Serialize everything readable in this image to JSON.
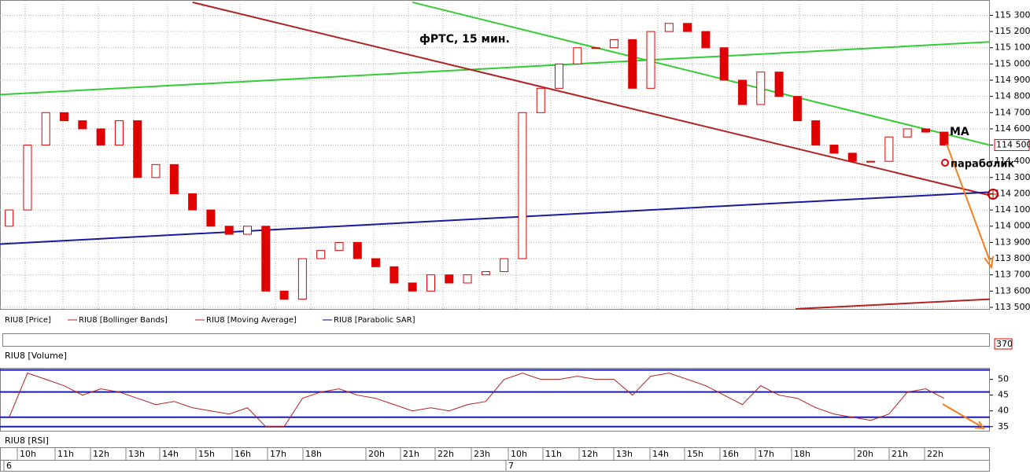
{
  "chart_data": [
    {
      "type": "candlestick",
      "title": "фРТС, 15 мин.",
      "xlim": [
        0,
        54
      ],
      "ylim": [
        113490,
        115370
      ],
      "yticks": [
        {
          "value": 113500,
          "label": "113 500"
        },
        {
          "value": 113600,
          "label": "113 600"
        },
        {
          "value": 113700,
          "label": "113 700"
        },
        {
          "value": 113800,
          "label": "113 800"
        },
        {
          "value": 113900,
          "label": "113 900"
        },
        {
          "value": 114000,
          "label": "114 000"
        },
        {
          "value": 114100,
          "label": "114 100"
        },
        {
          "value": 114200,
          "label": "114 200"
        },
        {
          "value": 114300,
          "label": "114 300"
        },
        {
          "value": 114400,
          "label": "114 400"
        },
        {
          "value": 114500,
          "label": "114 500"
        },
        {
          "value": 114600,
          "label": "114 600"
        },
        {
          "value": 114700,
          "label": "114 700"
        },
        {
          "value": 114800,
          "label": "114 800"
        },
        {
          "value": 114900,
          "label": "114 900"
        },
        {
          "value": 115000,
          "label": "115 000"
        },
        {
          "value": 115100,
          "label": "115 100"
        },
        {
          "value": 115200,
          "label": "115 200"
        },
        {
          "value": 115300,
          "label": "115 300"
        }
      ],
      "grid": true,
      "last_price": {
        "value": 114500,
        "label": "114 500"
      },
      "series": [
        {
          "name": "RIU8 [Price]",
          "color": "#e00000",
          "open": [
            114000,
            114100,
            114500,
            114700,
            114650,
            114600,
            114500,
            114650,
            114300,
            114380,
            114200,
            114100,
            114000,
            113950,
            114000,
            113600,
            113550,
            113800,
            113850,
            113900,
            113800,
            113750,
            113650,
            113600,
            113700,
            113650,
            113700,
            113720,
            113800,
            114700,
            114850,
            115000,
            115100,
            115100,
            115150,
            114850,
            115200,
            115250,
            115200,
            115100,
            114900,
            114750,
            114950,
            114800,
            114650,
            114500,
            114450,
            114400,
            114400,
            114550,
            114600,
            114580
          ],
          "close": [
            114100,
            114500,
            114700,
            114650,
            114600,
            114500,
            114650,
            114300,
            114380,
            114200,
            114100,
            114000,
            113950,
            114000,
            113600,
            113550,
            113800,
            113850,
            113900,
            113800,
            113750,
            113650,
            113600,
            113700,
            113650,
            113700,
            113720,
            113800,
            114700,
            114850,
            115000,
            115100,
            115100,
            115150,
            114850,
            115200,
            115250,
            115200,
            115100,
            114900,
            114750,
            114950,
            114800,
            114650,
            114500,
            114450,
            114400,
            114400,
            114550,
            114600,
            114580,
            114500
          ]
        }
      ],
      "legend": [
        {
          "name": "RIU8 [Price]",
          "color": "#000000"
        },
        {
          "name": "RIU8 [Bollinger Bands]",
          "color": "#b22222"
        },
        {
          "name": "RIU8 [Moving Average]",
          "color": "#b22222"
        },
        {
          "name": "RIU8 [Parabolic SAR]",
          "color": "#00008b"
        }
      ],
      "trend_lines": [
        {
          "color": "#33cc33",
          "x": [
            0,
            54
          ],
          "values": [
            114811,
            115136
          ]
        },
        {
          "color": "#33cc33",
          "x": [
            22.5,
            54
          ],
          "values": [
            115380,
            114500
          ]
        },
        {
          "color": "#b22222",
          "x": [
            10.5,
            54
          ],
          "values": [
            115380,
            114190
          ]
        },
        {
          "color": "#1a1aa0",
          "x": [
            0,
            54
          ],
          "values": [
            113890,
            114210
          ]
        },
        {
          "color": "#b22222",
          "x": [
            43.4,
            54
          ],
          "values": [
            113490,
            113550
          ]
        }
      ],
      "annotations": [
        "MA",
        "параболик"
      ]
    },
    {
      "type": "volume",
      "title": "RIU8 [Volume]",
      "last_value": 370
    },
    {
      "type": "line",
      "title": "RIU8 [RSI]",
      "color": "#b22222",
      "xlim": [
        0,
        54
      ],
      "ylim": [
        33.7,
        53.4
      ],
      "yticks": [
        50,
        45,
        40,
        35
      ],
      "levels": [
        53,
        46,
        38,
        35
      ],
      "values": [
        38,
        52,
        50,
        48,
        45,
        47,
        46,
        44,
        42,
        43,
        41,
        40,
        39,
        41,
        35,
        35,
        44,
        46,
        47,
        45,
        44,
        42,
        40,
        41,
        40,
        42,
        43,
        50,
        52,
        50,
        50,
        51,
        50,
        50,
        45,
        51,
        52,
        50,
        48,
        45,
        42,
        48,
        45,
        44,
        41,
        39,
        38,
        37,
        39,
        46,
        47,
        44
      ]
    }
  ],
  "time_axis": {
    "labels": [
      "10h",
      "11h",
      "12h",
      "13h",
      "14h",
      "15h",
      "16h",
      "17h",
      "18h",
      "20h",
      "21h",
      "22h",
      "23h",
      "10h",
      "11h",
      "12h",
      "13h",
      "14h",
      "15h",
      "16h",
      "17h",
      "18h",
      "20h",
      "21h",
      "22h"
    ],
    "dates": [
      "6",
      "7"
    ]
  }
}
